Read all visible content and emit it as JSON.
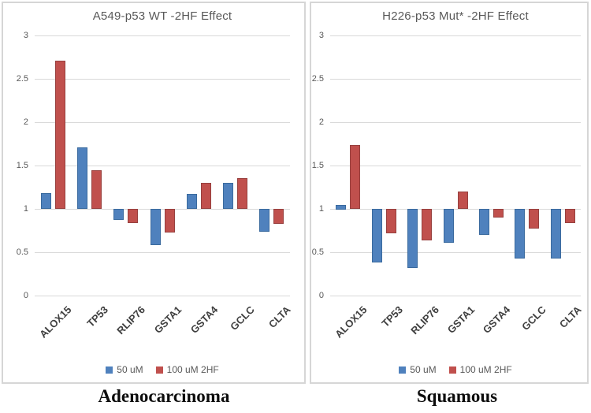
{
  "chart_data": [
    {
      "type": "bar",
      "title": "A549-p53 WT -2HF Effect",
      "caption": "Adenocarcinoma",
      "categories": [
        "ALOX15",
        "TP53",
        "RLIP76",
        "GSTA1",
        "GSTA4",
        "GCLC",
        "CLTA"
      ],
      "series": [
        {
          "name": "50 uM",
          "color": "#4F81BD",
          "border_color": "#3A6A9E",
          "values": [
            1.18,
            1.71,
            0.87,
            0.58,
            1.17,
            1.3,
            0.74
          ]
        },
        {
          "name": "100 uM 2HF",
          "color": "#C0504D",
          "border_color": "#97403E",
          "values": [
            2.71,
            1.45,
            0.84,
            0.73,
            1.3,
            1.35,
            0.83
          ]
        }
      ],
      "baseline": 1,
      "ylim": [
        0,
        3
      ],
      "ytick_values": [
        3,
        2.5,
        2,
        1.5,
        1,
        0.5,
        0
      ],
      "ytick_labels": [
        "3",
        "2.5",
        "2",
        "1.5",
        "1",
        "0.5",
        "0"
      ],
      "grid": "horizontal",
      "gridline_color": "#d9d9d9",
      "legend_position": "bottom-center",
      "xlabel": "",
      "ylabel": ""
    },
    {
      "type": "bar",
      "title": "H226-p53 Mut* -2HF Effect",
      "caption": "Squamous",
      "categories": [
        "ALOX15",
        "TP53",
        "RLIP76",
        "GSTA1",
        "GSTA4",
        "GCLC",
        "CLTA"
      ],
      "series": [
        {
          "name": "50 uM",
          "color": "#4F81BD",
          "border_color": "#3A6A9E",
          "values": [
            1.05,
            0.38,
            0.32,
            0.61,
            0.7,
            0.43,
            0.43
          ]
        },
        {
          "name": "100 uM 2HF",
          "color": "#C0504D",
          "border_color": "#97403E",
          "values": [
            1.74,
            0.72,
            0.64,
            1.2,
            0.9,
            0.77,
            0.84
          ]
        }
      ],
      "baseline": 1,
      "ylim": [
        0,
        3
      ],
      "ytick_values": [
        3,
        2.5,
        2,
        1.5,
        1,
        0.5,
        0
      ],
      "ytick_labels": [
        "3",
        "2.5",
        "2",
        "1.5",
        "1",
        "0.5",
        "0"
      ],
      "grid": "horizontal",
      "gridline_color": "#d9d9d9",
      "legend_position": "bottom-center",
      "xlabel": "",
      "ylabel": ""
    }
  ]
}
